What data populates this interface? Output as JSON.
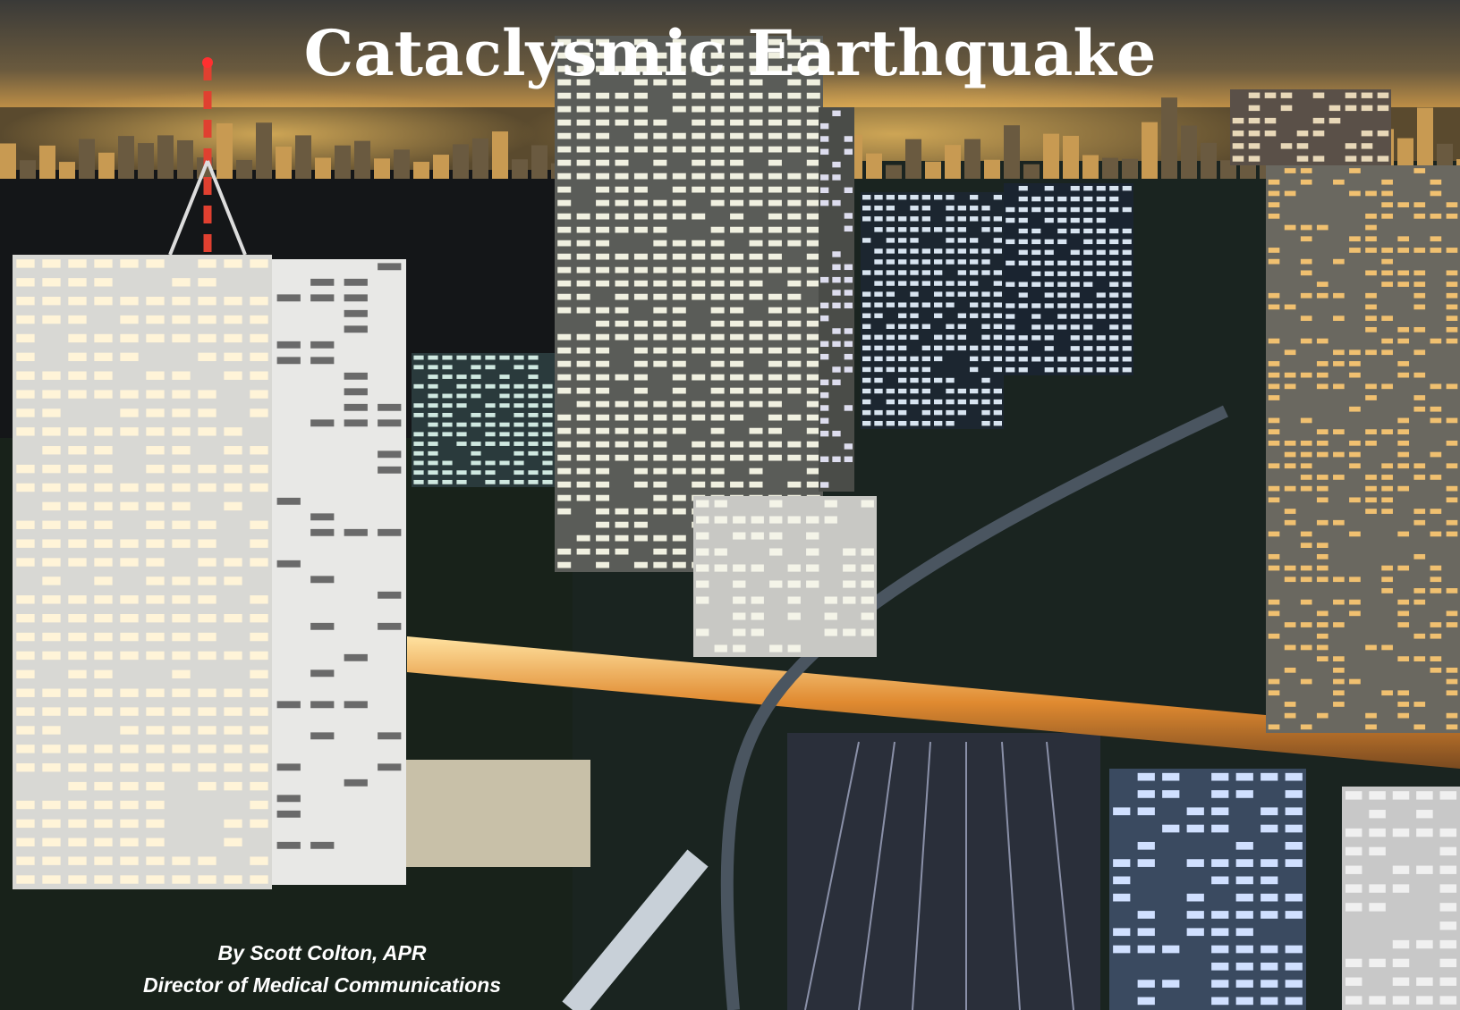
{
  "header": {
    "title": "Cataclysmic Earthquake"
  },
  "byline": {
    "author": "By Scott Colton, APR",
    "role": "Director of Medical Communications"
  }
}
